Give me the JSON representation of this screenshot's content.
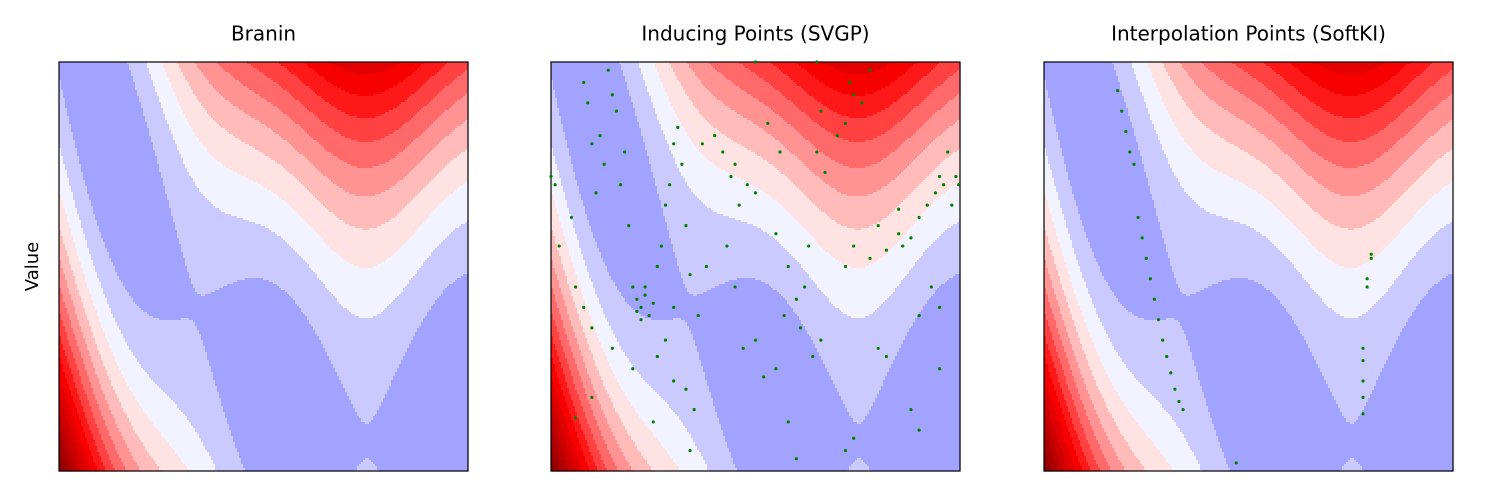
{
  "chart_data": [
    {
      "type": "contour",
      "title": "Branin",
      "ylabel": "Value",
      "colormap": "seismic",
      "xlim": [
        -5,
        10
      ],
      "ylim": [
        0,
        15
      ]
    },
    {
      "type": "contour",
      "title": "Inducing Points (SVGP)",
      "colormap": "seismic",
      "xlim": [
        -5,
        10
      ],
      "ylim": [
        0,
        15
      ],
      "series": [
        {
          "color": "#008000",
          "x": [
            -5,
            -4.85,
            -4.7,
            -4.25,
            -3.8,
            -3.65,
            -3.5,
            -3.35,
            -3.2,
            -3.05,
            -2.9,
            -2.75,
            -2.6,
            -2.45,
            -2.3,
            -2.15,
            -2,
            -1.85,
            -1.7,
            -1.55,
            -1.4,
            -1.7,
            -1.25,
            -1.55,
            -1.85,
            -1.1,
            -0.95,
            -0.8,
            -0.65,
            -0.5,
            -0.35,
            -0.2,
            -0.05,
            0.1,
            -0.5,
            -0.8,
            -1.1,
            -0.5,
            -0.05,
            0.25,
            0.1,
            -1.25,
            -2,
            -2.75,
            -3.5,
            -4.1,
            -3.8,
            0.4,
            0.7,
            0.55,
            1,
            1.3,
            1.6,
            1.9,
            1.75,
            2.2,
            2.5,
            1.45,
            1.75,
            2.05,
            2.5,
            2.8,
            3.25,
            3.7,
            4,
            3.55,
            4,
            4.3,
            3.7,
            4.45,
            4.15,
            4.6,
            4.9,
            3.25,
            2.95,
            3.4,
            4.9,
            5.5,
            5.8,
            6.1,
            6.4,
            6.7,
            5.95,
            4.75,
            2.5,
            5.8,
            6.1,
            6.7,
            7,
            7.3,
            7.75,
            7.9,
            8.2,
            8.5,
            8.8,
            9.1,
            9.25,
            9.4,
            9.55,
            9.85,
            9.95,
            9.7,
            8.95,
            9.25,
            8.5,
            7.3,
            7,
            8.2,
            8.5,
            6.1,
            5.8,
            9.25,
            -4.1,
            -3.5,
            4.75,
            5.05,
            7.75
          ],
          "y": [
            10.8,
            10.5,
            8.25,
            9.3,
            14.25,
            13.5,
            12,
            10.2,
            12.3,
            11.25,
            14.7,
            13.8,
            13.2,
            10.5,
            11.7,
            9,
            6.75,
            6.3,
            6,
            6.45,
            5.7,
            5.55,
            6.15,
            6.75,
            5.85,
            7.5,
            8.25,
            9.75,
            10.5,
            12,
            12.6,
            11.25,
            9,
            7.2,
            6,
            4.8,
            4.2,
            3.3,
            3,
            2.25,
            0.75,
            1.8,
            3.75,
            4.5,
            5.25,
            6.75,
            6,
            5.7,
            7.5,
            12,
            12.3,
            11.7,
            10.8,
            9.75,
            11.25,
            10.5,
            10.2,
            8.25,
            6.75,
            4.5,
            4.8,
            3.45,
            3.75,
            1.8,
            0.45,
            5.7,
            6.3,
            6.75,
            7.5,
            8.25,
            5.25,
            4.2,
            4.8,
            8.7,
            12.75,
            11.7,
            13.2,
            12.3,
            12.75,
            13.8,
            13.5,
            14.7,
            14.25,
            15,
            15,
            7.5,
            8.25,
            7.8,
            9,
            8.1,
            8.7,
            8.25,
            8.55,
            9.3,
            9.75,
            10.2,
            10.8,
            10.5,
            11.7,
            10.8,
            10.5,
            9.75,
            6.75,
            6,
            5.7,
            4.2,
            4.5,
            2.25,
            1.5,
            1.2,
            0.75,
            3.75,
            1.95,
            2.7,
            11.7,
            10.95,
            9.6
          ]
        }
      ]
    },
    {
      "type": "contour",
      "title": "Interpolation Points (SoftKI)",
      "colormap": "seismic",
      "xlim": [
        -5,
        10
      ],
      "ylim": [
        0,
        15
      ],
      "series": [
        {
          "color": "#008000",
          "x": [
            -2.3,
            -2.15,
            -2,
            -1.85,
            -1.7,
            -1.55,
            -1.4,
            -1.25,
            -1.1,
            -0.95,
            -0.8,
            -0.65,
            -0.5,
            -0.35,
            -0.2,
            -0.05,
            0.1,
            7,
            7,
            6.85,
            6.85,
            6.7,
            6.7,
            6.7,
            6.7,
            6.7,
            2.05
          ],
          "y": [
            13.95,
            13.2,
            12.45,
            11.7,
            11.25,
            9.3,
            8.55,
            7.8,
            7.05,
            6.3,
            5.55,
            4.8,
            4.2,
            3.6,
            3,
            2.55,
            2.25,
            7.95,
            7.8,
            7.05,
            6.75,
            4.5,
            4.05,
            3.3,
            2.7,
            2.1,
            0.3
          ]
        }
      ]
    }
  ]
}
